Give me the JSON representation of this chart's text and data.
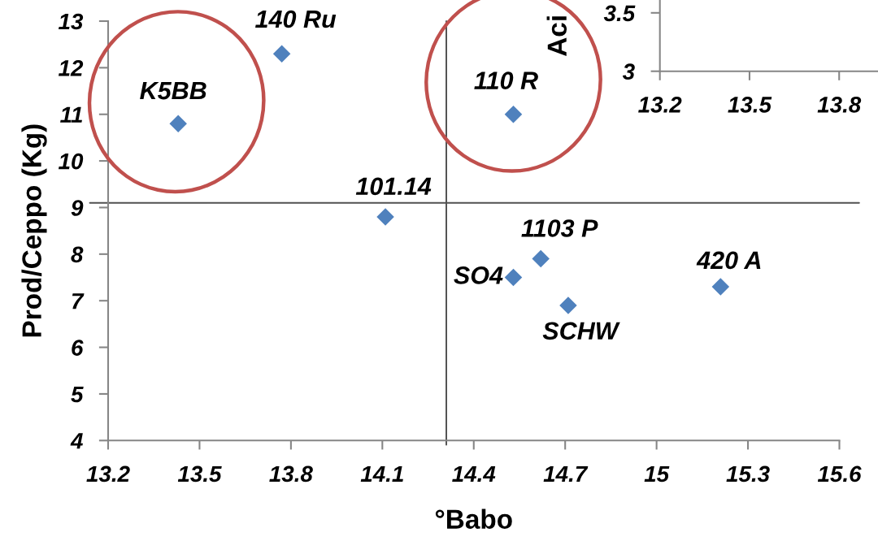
{
  "chart_data": [
    {
      "type": "scatter",
      "xlabel": "°Babo",
      "ylabel": "Prod/Ceppo (Kg)",
      "x": [
        13.43,
        13.77,
        14.53,
        14.11,
        14.62,
        14.53,
        14.71,
        15.21
      ],
      "values": [
        10.8,
        12.3,
        11.0,
        8.8,
        7.9,
        7.5,
        6.9,
        7.3
      ],
      "color": "#4f81bd",
      "marker": "diamond",
      "xlim": [
        13.2,
        15.6
      ],
      "ylim": [
        4,
        13
      ],
      "xticks": [
        13.2,
        13.5,
        13.8,
        14.1,
        14.4,
        14.7,
        15,
        15.3,
        15.6
      ],
      "yticks": [
        4,
        5,
        6,
        7,
        8,
        9,
        10,
        11,
        12,
        13
      ],
      "annotations": [
        {
          "text": "K5BB",
          "x": 13.43,
          "y": 10.8
        },
        {
          "text": "140 Ru",
          "x": 13.77,
          "y": 12.3
        },
        {
          "text": "110 R",
          "x": 14.53,
          "y": 11.0
        },
        {
          "text": "101.14",
          "x": 14.11,
          "y": 8.8
        },
        {
          "text": "1103 P",
          "x": 14.62,
          "y": 7.9
        },
        {
          "text": "SO4",
          "x": 14.53,
          "y": 7.5
        },
        {
          "text": "SCHW",
          "x": 14.71,
          "y": 6.9
        },
        {
          "text": "420 A",
          "x": 15.21,
          "y": 7.3
        }
      ],
      "ref_lines": [
        {
          "axis": "y",
          "value": 9.1,
          "color": "#505050"
        },
        {
          "axis": "x",
          "value": 14.31,
          "color": "#505050"
        }
      ]
    },
    {
      "type": "scatter",
      "ylabel": "Aci",
      "xlim": [
        13.2,
        13.93
      ],
      "ylim": [
        3,
        3.61
      ],
      "xticks": [
        13.2,
        13.5,
        13.8
      ],
      "yticks": [
        3,
        3.5
      ]
    }
  ]
}
